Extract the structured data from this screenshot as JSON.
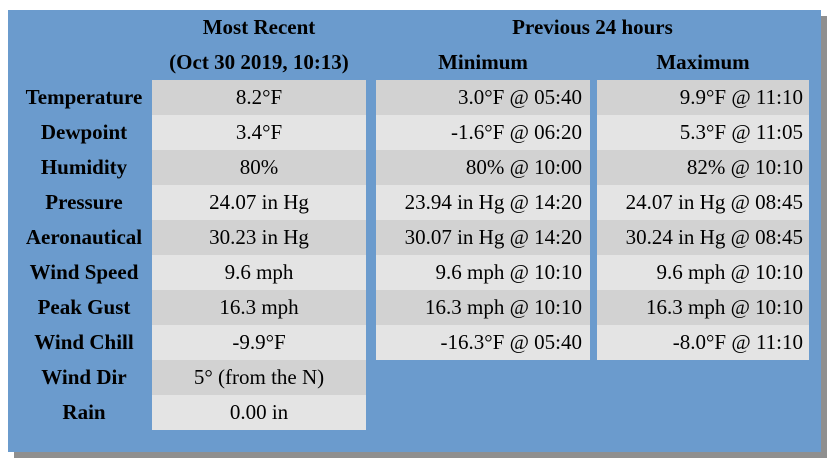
{
  "headers": {
    "most_recent": "Most Recent",
    "most_recent_time": "(Oct 30 2019, 10:13)",
    "previous": "Previous 24 hours",
    "minimum": "Minimum",
    "maximum": "Maximum"
  },
  "rows": [
    {
      "label": "Temperature",
      "recent": "8.2°F",
      "min": "3.0°F @ 05:40",
      "max": "9.9°F @ 11:10"
    },
    {
      "label": "Dewpoint",
      "recent": "3.4°F",
      "min": "-1.6°F @ 06:20",
      "max": "5.3°F @ 11:05"
    },
    {
      "label": "Humidity",
      "recent": "80%",
      "min": "80% @ 10:00",
      "max": "82% @ 10:10"
    },
    {
      "label": "Pressure",
      "recent": "24.07 in Hg",
      "min": "23.94 in Hg @ 14:20",
      "max": "24.07 in Hg @ 08:45"
    },
    {
      "label": "Aeronautical",
      "recent": "30.23 in Hg",
      "min": "30.07 in Hg @ 14:20",
      "max": "30.24 in Hg @ 08:45"
    },
    {
      "label": "Wind Speed",
      "recent": "9.6 mph",
      "min": "9.6 mph @ 10:10",
      "max": "9.6 mph @ 10:10"
    },
    {
      "label": "Peak Gust",
      "recent": "16.3 mph",
      "min": "16.3 mph @ 10:10",
      "max": "16.3 mph @ 10:10"
    },
    {
      "label": "Wind Chill",
      "recent": "-9.9°F",
      "min": "-16.3°F @ 05:40",
      "max": "-8.0°F @ 11:10"
    },
    {
      "label": "Wind Dir",
      "recent": "5° (from the N)"
    },
    {
      "label": "Rain",
      "recent": "0.00 in"
    }
  ],
  "colors": {
    "panel": "#6b9bcd",
    "cell_dark": "#d2d2d2",
    "cell_light": "#e4e4e4"
  }
}
